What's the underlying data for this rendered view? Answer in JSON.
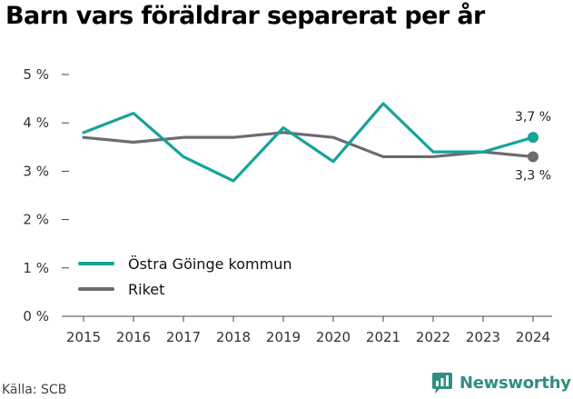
{
  "title": "Barn vars föräldrar separerat per år",
  "source": "Källa: SCB",
  "brand": {
    "name": "Newsworthy",
    "icon": "newsworthy-logo-icon",
    "color": "#2f8f80"
  },
  "chart_data": {
    "type": "line",
    "title": "Barn vars föräldrar separerat per år",
    "xlabel": "",
    "ylabel": "",
    "x": [
      "2015",
      "2016",
      "2017",
      "2018",
      "2019",
      "2020",
      "2021",
      "2022",
      "2023",
      "2024"
    ],
    "ylim": [
      0,
      5
    ],
    "yticks": [
      0,
      1,
      2,
      3,
      4,
      5
    ],
    "ytick_labels": [
      "0 %",
      "1 %",
      "2 %",
      "3 %",
      "4 %",
      "5 %"
    ],
    "grid": false,
    "legend_position": "bottom-left",
    "series": [
      {
        "name": "Östra Göinge kommun",
        "color": "#16a39a",
        "values": [
          3.8,
          4.2,
          3.3,
          2.8,
          3.9,
          3.2,
          4.4,
          3.4,
          3.4,
          3.7
        ],
        "end_label": "3,7 %",
        "end_label_position": "above"
      },
      {
        "name": "Riket",
        "color": "#6b6b70",
        "values": [
          3.7,
          3.6,
          3.7,
          3.7,
          3.8,
          3.7,
          3.3,
          3.3,
          3.4,
          3.3
        ],
        "end_label": "3,3 %",
        "end_label_position": "below"
      }
    ]
  }
}
